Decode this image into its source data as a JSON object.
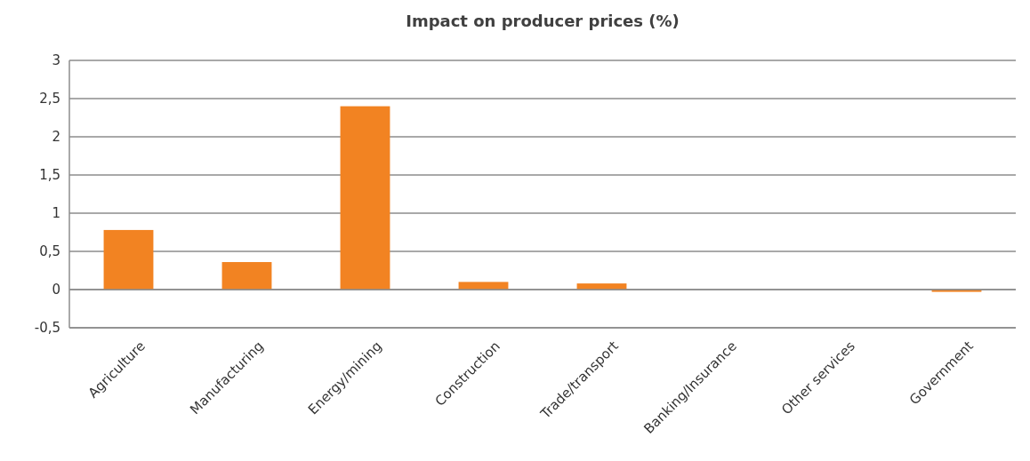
{
  "chart_data": {
    "type": "bar",
    "title": "Impact on producer prices (%)",
    "categories": [
      "Agriculture",
      "Manufacturing",
      "Energy/mining",
      "Construction",
      "Trade/transport",
      "Banking/Insurance",
      "Other services",
      "Government"
    ],
    "values": [
      0.78,
      0.36,
      2.4,
      0.1,
      0.08,
      0,
      0,
      -0.03
    ],
    "color": "#f28322",
    "ylim": [
      -0.5,
      3
    ],
    "yticks": [
      {
        "value": -0.5,
        "label": "-0,5"
      },
      0,
      {
        "value": 0.5,
        "label": "0,5"
      },
      1,
      {
        "value": 1.5,
        "label": "1,5"
      },
      2,
      {
        "value": 2.5,
        "label": "2,5"
      },
      3
    ],
    "grid": "y"
  }
}
